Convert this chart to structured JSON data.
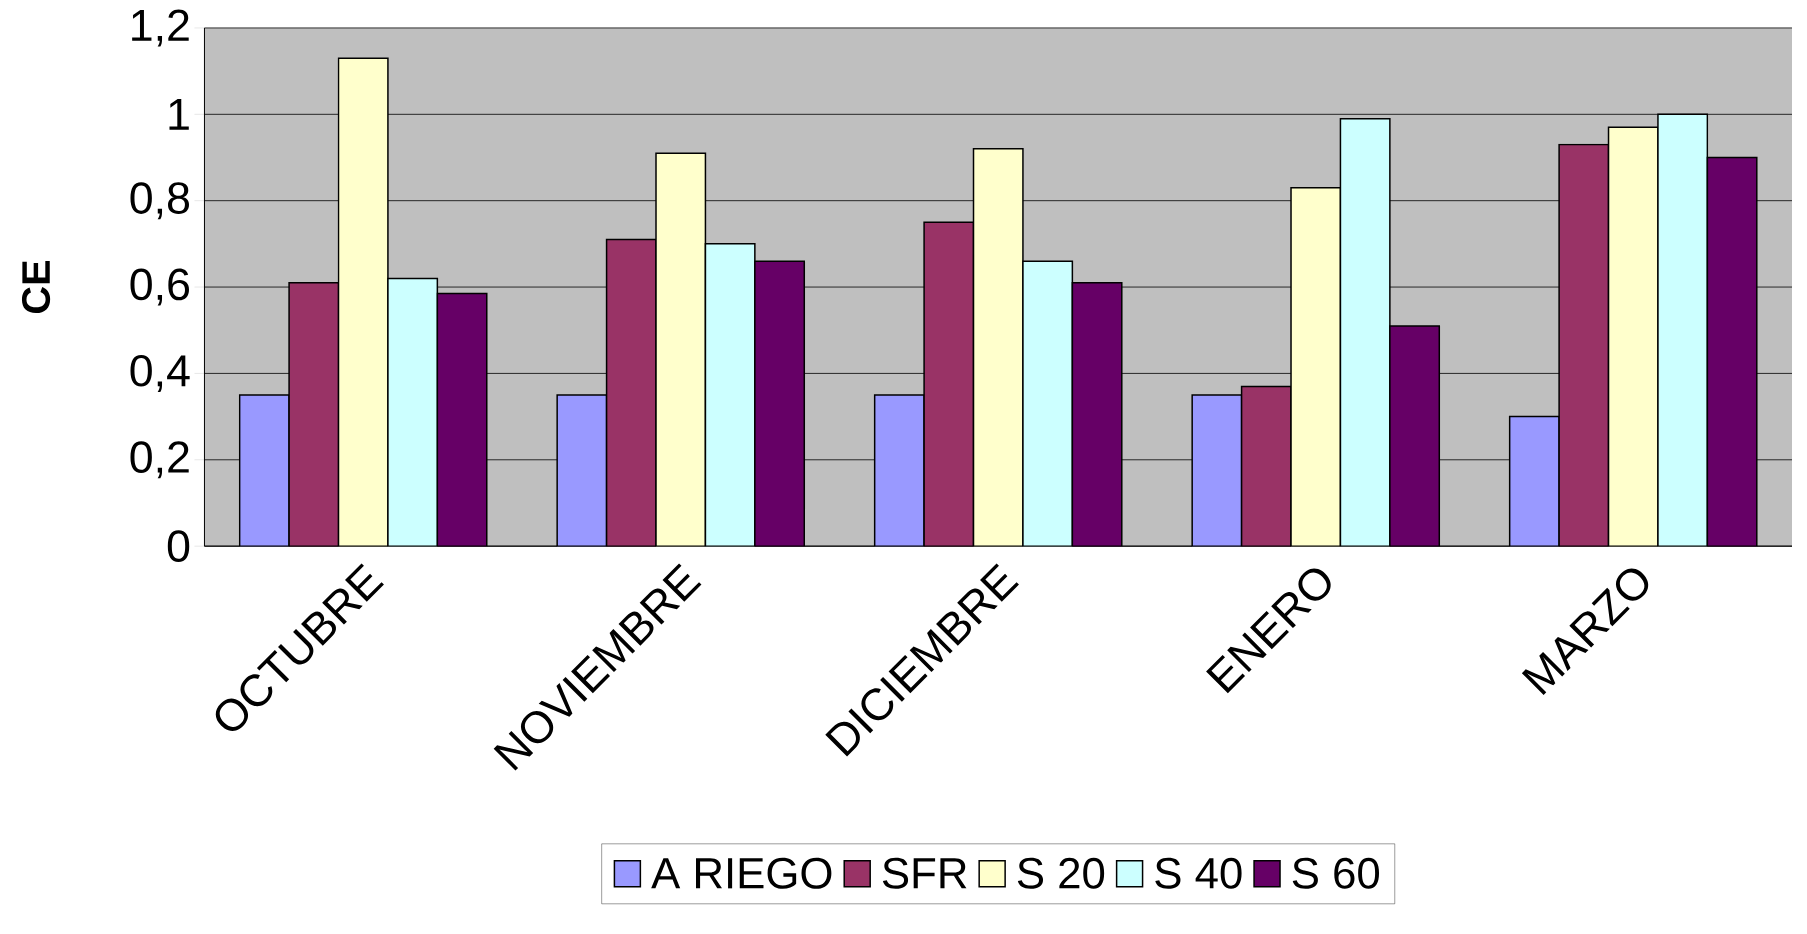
{
  "chart_data": {
    "type": "bar",
    "ylabel": "CE",
    "categories": [
      "OCTUBRE",
      "NOVIEMBRE",
      "DICIEMBRE",
      "ENERO",
      "MARZO"
    ],
    "series": [
      {
        "name": "A RIEGO",
        "color": "#9999ff",
        "values": [
          0.35,
          0.35,
          0.35,
          0.35,
          0.3
        ]
      },
      {
        "name": "SFR",
        "color": "#993366",
        "values": [
          0.61,
          0.71,
          0.75,
          0.37,
          0.93
        ]
      },
      {
        "name": "S 20",
        "color": "#ffffcc",
        "values": [
          1.13,
          0.91,
          0.92,
          0.83,
          0.97
        ]
      },
      {
        "name": "S 40",
        "color": "#ccffff",
        "values": [
          0.62,
          0.7,
          0.66,
          0.99,
          1.0
        ]
      },
      {
        "name": "S 60",
        "color": "#660066",
        "values": [
          0.585,
          0.66,
          0.61,
          0.51,
          0.9
        ]
      }
    ],
    "ylim": [
      0,
      1.2
    ],
    "yticks": [
      0,
      {
        "value": 0.2,
        "label": "0,2"
      },
      {
        "value": 0.4,
        "label": "0,4"
      },
      {
        "value": 0.6,
        "label": "0,6"
      },
      {
        "value": 0.8,
        "label": "0,8"
      },
      1,
      {
        "value": 1.2,
        "label": "1,2"
      }
    ],
    "grid": "y",
    "legend": "bottom"
  }
}
